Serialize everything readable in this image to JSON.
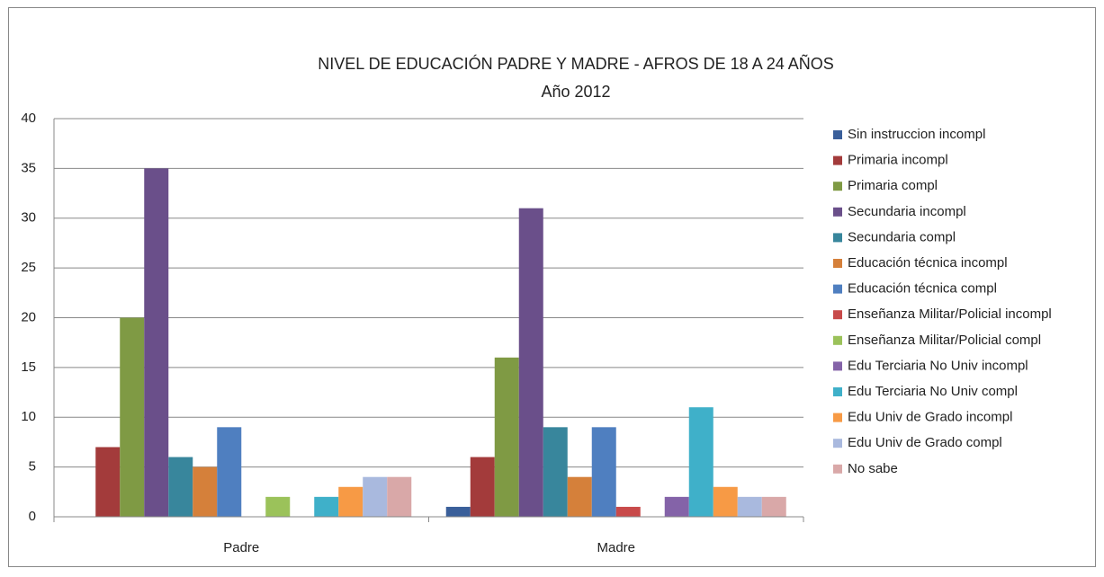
{
  "chart_data": {
    "type": "bar",
    "title": "NIVEL DE EDUCACIÓN PADRE Y MADRE - AFROS DE 18 A 24 AÑOS",
    "subtitle": "Año 2012",
    "categories": [
      "Padre",
      "Madre"
    ],
    "ylim": [
      0,
      40
    ],
    "yticks": [
      0,
      5,
      10,
      15,
      20,
      25,
      30,
      35,
      40
    ],
    "grid": true,
    "legend": "right",
    "series": [
      {
        "name": "Sin instruccion incompl",
        "color": "#3a5f9a",
        "values": [
          0,
          1
        ]
      },
      {
        "name": "Primaria incompl",
        "color": "#a33b3b",
        "values": [
          7,
          6
        ]
      },
      {
        "name": "Primaria compl",
        "color": "#7f9a44",
        "values": [
          20,
          16
        ]
      },
      {
        "name": "Secundaria incompl",
        "color": "#6a4f8a",
        "values": [
          35,
          31
        ]
      },
      {
        "name": "Secundaria compl",
        "color": "#38869c",
        "values": [
          6,
          9
        ]
      },
      {
        "name": "Educación técnica incompl",
        "color": "#d5803a",
        "values": [
          5,
          4
        ]
      },
      {
        "name": "Educación técnica compl",
        "color": "#4f7fc0",
        "values": [
          9,
          9
        ]
      },
      {
        "name": "Enseñanza Militar/Policial incompl",
        "color": "#c84a4a",
        "values": [
          0,
          1
        ]
      },
      {
        "name": "Enseñanza Militar/Policial compl",
        "color": "#9bc25a",
        "values": [
          2,
          0
        ]
      },
      {
        "name": "Edu Terciaria No Univ incompl",
        "color": "#8463a8",
        "values": [
          0,
          2
        ]
      },
      {
        "name": "Edu Terciaria No Univ compl",
        "color": "#3fb0c9",
        "values": [
          2,
          11
        ]
      },
      {
        "name": "Edu Univ de Grado incompl",
        "color": "#f79a45",
        "values": [
          3,
          3
        ]
      },
      {
        "name": "Edu Univ de Grado compl",
        "color": "#a9b9de",
        "values": [
          4,
          2
        ]
      },
      {
        "name": "No sabe",
        "color": "#d9a8a8",
        "values": [
          4,
          2
        ]
      }
    ]
  }
}
